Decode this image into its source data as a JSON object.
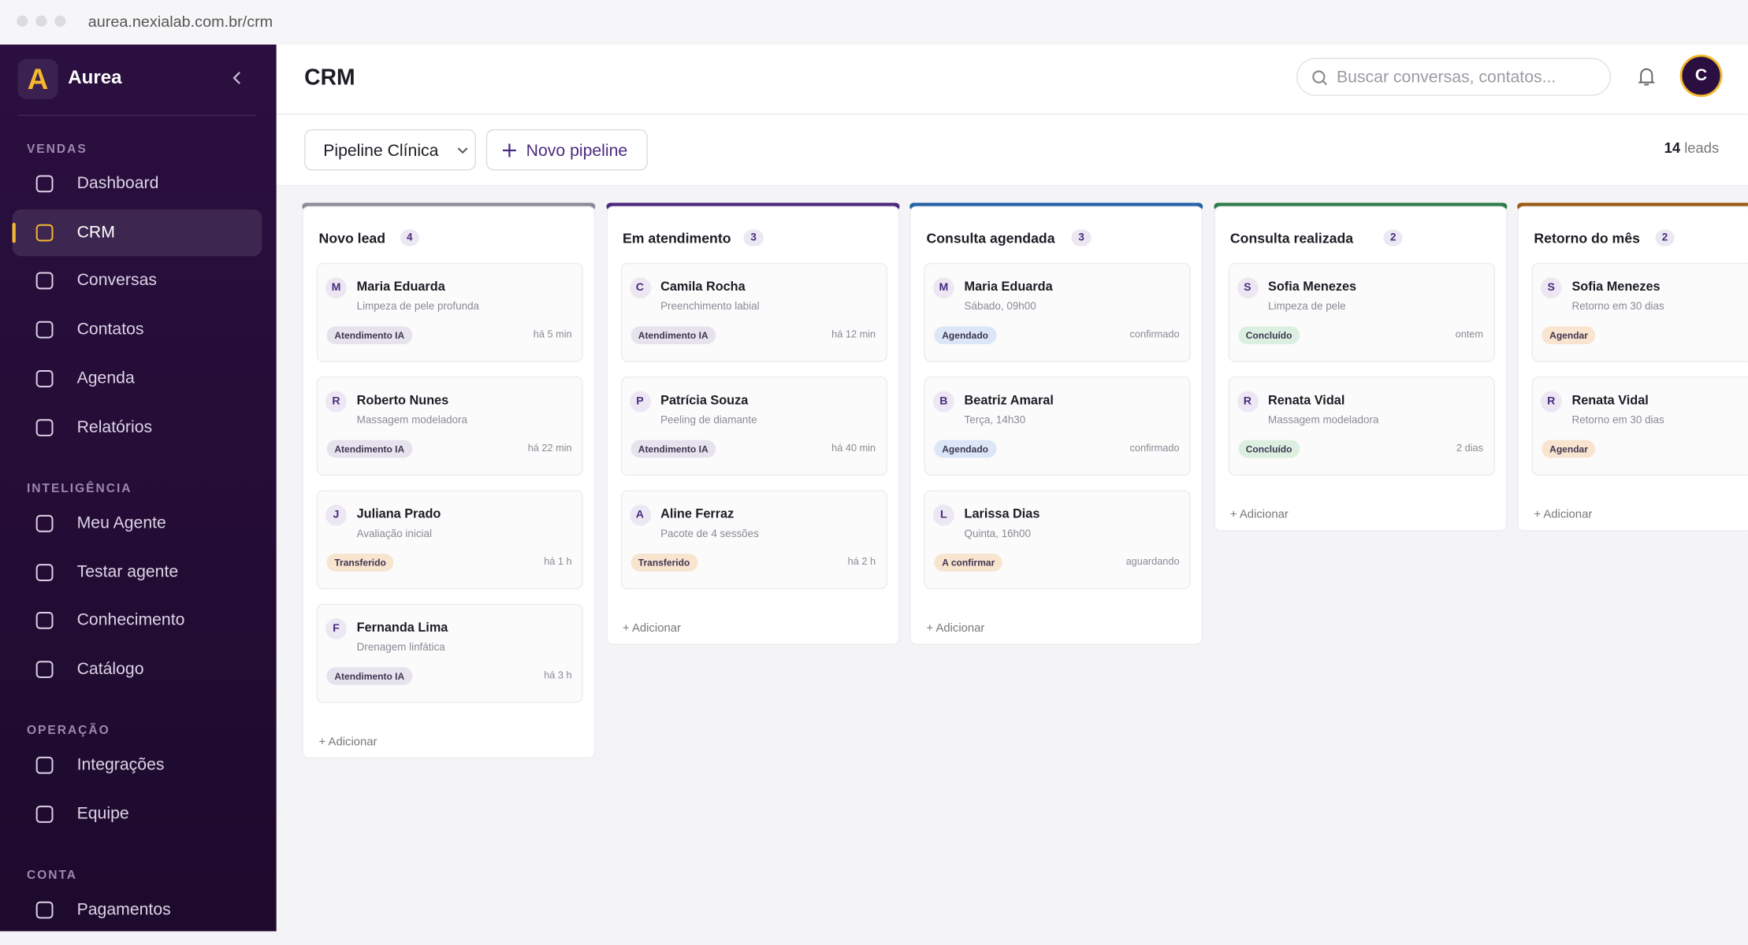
{
  "browser": {
    "url": "aurea.nexialab.com.br/crm"
  },
  "sidebar": {
    "logo": "A",
    "brand": "Aurea",
    "sections": [
      {
        "title": "VENDAS",
        "items": [
          "Dashboard",
          "CRM",
          "Conversas",
          "Contatos",
          "Agenda",
          "Relatórios"
        ]
      },
      {
        "title": "INTELIGÊNCIA",
        "items": [
          "Meu Agente",
          "Testar agente",
          "Conhecimento",
          "Catálogo"
        ]
      },
      {
        "title": "OPERAÇÃO",
        "items": [
          "Integrações",
          "Equipe"
        ]
      },
      {
        "title": "CONTA",
        "items": [
          "Pagamentos"
        ]
      }
    ],
    "active": "CRM"
  },
  "header": {
    "title": "CRM",
    "search_placeholder": "Buscar conversas, contatos...",
    "avatar": "C"
  },
  "toolbar": {
    "pipeline": "Pipeline Clínica",
    "new_pipeline": "Novo pipeline",
    "leads_count": "14",
    "leads_label": "leads"
  },
  "columns": [
    {
      "title": "Novo lead",
      "count": "4",
      "color": "#8e8a96",
      "add": "Adicionar",
      "cards": [
        {
          "initial": "M",
          "name": "Maria Eduarda",
          "desc": "Limpeza de pele profunda",
          "tag": "Atendimento IA",
          "tag_color": "#e6e3ee",
          "time": "há 5 min"
        },
        {
          "initial": "R",
          "name": "Roberto Nunes",
          "desc": "Massagem modeladora",
          "tag": "Atendimento IA",
          "tag_color": "#e6e3ee",
          "time": "há 22 min"
        },
        {
          "initial": "J",
          "name": "Juliana Prado",
          "desc": "Avaliação inicial",
          "tag": "Transferido",
          "tag_color": "#f8e4cf",
          "time": "há 1 h"
        },
        {
          "initial": "F",
          "name": "Fernanda Lima",
          "desc": "Drenagem linfática",
          "tag": "Atendimento IA",
          "tag_color": "#e6e3ee",
          "time": "há 3 h"
        }
      ]
    },
    {
      "title": "Em atendimento",
      "count": "3",
      "color": "#4b2a7f",
      "add": "Adicionar",
      "cards": [
        {
          "initial": "C",
          "name": "Camila Rocha",
          "desc": "Preenchimento labial",
          "tag": "Atendimento IA",
          "tag_color": "#e6e3ee",
          "time": "há 12 min"
        },
        {
          "initial": "P",
          "name": "Patrícia Souza",
          "desc": "Peeling de diamante",
          "tag": "Atendimento IA",
          "tag_color": "#e6e3ee",
          "time": "há 40 min"
        },
        {
          "initial": "A",
          "name": "Aline Ferraz",
          "desc": "Pacote de 4 sessões",
          "tag": "Transferido",
          "tag_color": "#f8e4cf",
          "time": "há 2 h"
        }
      ]
    },
    {
      "title": "Consulta agendada",
      "count": "3",
      "color": "#2563a8",
      "add": "Adicionar",
      "cards": [
        {
          "initial": "M",
          "name": "Maria Eduarda",
          "desc": "Sábado, 09h00",
          "tag": "Agendado",
          "tag_color": "#dbe7f6",
          "time": "confirmado"
        },
        {
          "initial": "B",
          "name": "Beatriz Amaral",
          "desc": "Terça, 14h30",
          "tag": "Agendado",
          "tag_color": "#dbe7f6",
          "time": "confirmado"
        },
        {
          "initial": "L",
          "name": "Larissa Dias",
          "desc": "Quinta, 16h00",
          "tag": "A confirmar",
          "tag_color": "#f8e4cf",
          "time": "aguardando"
        }
      ]
    },
    {
      "title": "Consulta realizada",
      "count": "2",
      "color": "#2f7d4a",
      "add": "Adicionar",
      "cards": [
        {
          "initial": "S",
          "name": "Sofia Menezes",
          "desc": "Limpeza de pele",
          "tag": "Concluído",
          "tag_color": "#dcf0e1",
          "time": "ontem"
        },
        {
          "initial": "R",
          "name": "Renata Vidal",
          "desc": "Massagem modeladora",
          "tag": "Concluído",
          "tag_color": "#dcf0e1",
          "time": "2 dias"
        }
      ]
    },
    {
      "title": "Retorno do mês",
      "count": "2",
      "color": "#9a5a12",
      "add": "Adicionar",
      "cards": [
        {
          "initial": "S",
          "name": "Sofia Menezes",
          "desc": "Retorno em 30 dias",
          "tag": "Agendar",
          "tag_color": "#f8e4cf",
          "time": ""
        },
        {
          "initial": "R",
          "name": "Renata Vidal",
          "desc": "Retorno em 30 dias",
          "tag": "Agendar",
          "tag_color": "#f8e4cf",
          "time": ""
        }
      ]
    }
  ]
}
